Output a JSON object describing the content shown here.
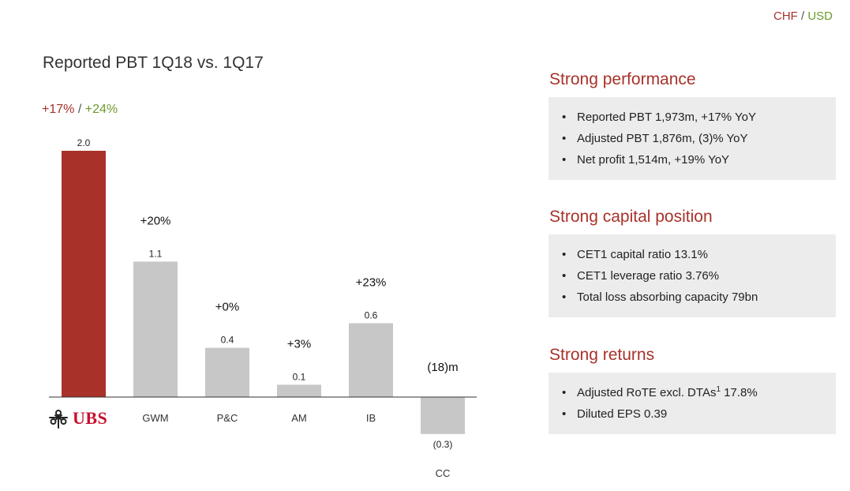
{
  "currency": {
    "chf": "CHF",
    "separator": "/",
    "usd": "USD"
  },
  "page_title": "Reported PBT 1Q18 vs. 1Q17",
  "headline": {
    "chf": "+17%",
    "separator": "/",
    "usd": "+24%"
  },
  "logo": {
    "text": "UBS"
  },
  "chart_data": {
    "type": "bar",
    "title": "Reported PBT 1Q18 vs. 1Q17",
    "categories": [
      "UBS",
      "GWM",
      "P&C",
      "AM",
      "IB",
      "CC"
    ],
    "values": [
      2.0,
      1.1,
      0.4,
      0.1,
      0.6,
      -0.3
    ],
    "value_labels": [
      "2.0",
      "1.1",
      "0.4",
      "0.1",
      "0.6",
      "(0.3)"
    ],
    "change_labels": [
      "",
      "+20%",
      "+0%",
      "+3%",
      "+23%",
      "(18)m"
    ],
    "colors": [
      "#a8322a",
      "#c7c7c7",
      "#c7c7c7",
      "#c7c7c7",
      "#c7c7c7",
      "#c7c7c7"
    ],
    "ylim": [
      -0.3,
      2.0
    ],
    "grid": false,
    "xlabel": "",
    "ylabel": ""
  },
  "sections": [
    {
      "title": "Strong performance",
      "items": [
        {
          "text": "Reported PBT 1,973m, +17% YoY"
        },
        {
          "text": "Adjusted PBT 1,876m, (3)% YoY"
        },
        {
          "text": "Net profit 1,514m, +19% YoY"
        }
      ]
    },
    {
      "title": "Strong capital position",
      "items": [
        {
          "text": "CET1 capital ratio 13.1%"
        },
        {
          "text": "CET1 leverage ratio 3.76%"
        },
        {
          "text": "Total loss absorbing capacity 79bn"
        }
      ]
    },
    {
      "title": "Strong returns",
      "items": [
        {
          "text": "Adjusted RoTE excl. DTAs",
          "sup": "1",
          "suffix": " 17.8%"
        },
        {
          "text": "Diluted EPS 0.39"
        }
      ]
    }
  ]
}
